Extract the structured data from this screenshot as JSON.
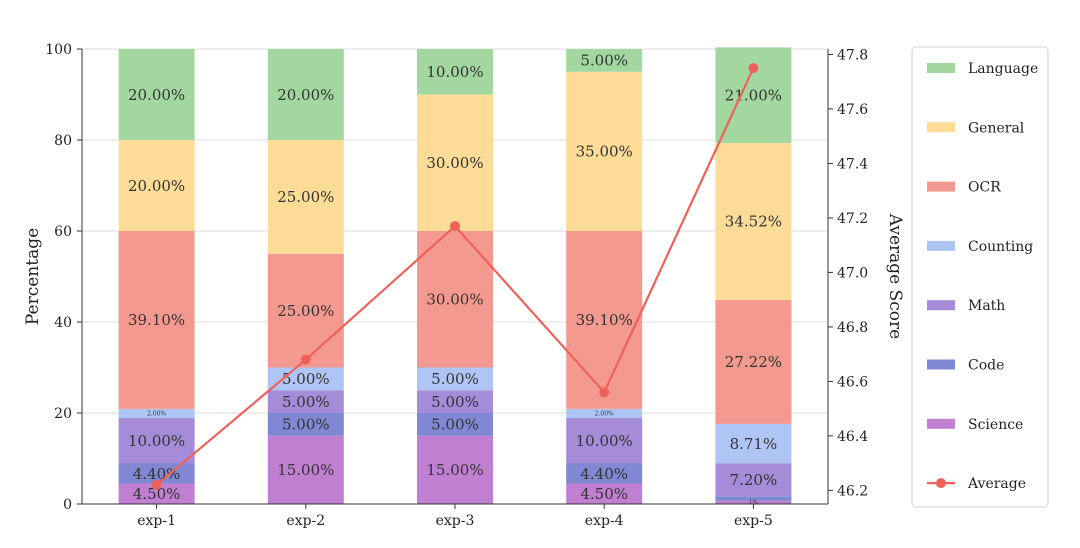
{
  "chart_data": {
    "type": "bar",
    "stacked": true,
    "categories": [
      "exp-1",
      "exp-2",
      "exp-3",
      "exp-4",
      "exp-5"
    ],
    "series": [
      {
        "name": "Science",
        "color": "#c07fd0",
        "values": [
          4.5,
          15.0,
          15.0,
          4.5,
          0.7
        ],
        "labels": [
          "4.50%",
          "15.00%",
          "15.00%",
          "4.50%",
          "1%"
        ]
      },
      {
        "name": "Code",
        "color": "#8088d4",
        "values": [
          4.4,
          5.0,
          5.0,
          4.4,
          1.0
        ],
        "labels": [
          "4.40%",
          "5.00%",
          "5.00%",
          "4.40%",
          ""
        ]
      },
      {
        "name": "Math",
        "color": "#a58bd8",
        "values": [
          10.0,
          5.0,
          5.0,
          10.0,
          7.2
        ],
        "labels": [
          "10.00%",
          "5.00%",
          "5.00%",
          "10.00%",
          "7.20%"
        ]
      },
      {
        "name": "Counting",
        "color": "#aec5f5",
        "values": [
          2.0,
          5.0,
          5.0,
          2.0,
          8.71
        ],
        "labels": [
          "2.00%",
          "5.00%",
          "5.00%",
          "2.00%",
          "8.71%"
        ]
      },
      {
        "name": "OCR",
        "color": "#f4998f",
        "values": [
          39.1,
          25.0,
          30.0,
          39.1,
          27.22
        ],
        "labels": [
          "39.10%",
          "25.00%",
          "30.00%",
          "39.10%",
          "27.22%"
        ]
      },
      {
        "name": "General",
        "color": "#fcdc96",
        "values": [
          20.0,
          25.0,
          30.0,
          35.0,
          34.52
        ],
        "labels": [
          "20.00%",
          "25.00%",
          "30.00%",
          "35.00%",
          "34.52%"
        ]
      },
      {
        "name": "Language",
        "color": "#a3d7a0",
        "values": [
          20.0,
          20.0,
          10.0,
          5.0,
          21.0
        ],
        "labels": [
          "20.00%",
          "20.00%",
          "10.00%",
          "5.00%",
          "21.00%"
        ]
      }
    ],
    "line_series": {
      "name": "Average",
      "color": "#f0605a",
      "values": [
        46.22,
        46.68,
        47.17,
        46.56,
        47.75
      ]
    },
    "ylabel": "Percentage",
    "ylim": [
      0,
      100
    ],
    "yticks": [
      "0",
      "20",
      "40",
      "60",
      "80",
      "100"
    ],
    "y2label": "Average Score",
    "y2lim": [
      46.15,
      47.82
    ],
    "y2ticks": [
      "46.2",
      "46.4",
      "46.6",
      "46.8",
      "47.0",
      "47.2",
      "47.4",
      "47.6",
      "47.8"
    ],
    "grid": "horizontal",
    "legend_position": "right",
    "legend_order": [
      "Language",
      "General",
      "OCR",
      "Counting",
      "Math",
      "Code",
      "Science",
      "Average"
    ]
  }
}
